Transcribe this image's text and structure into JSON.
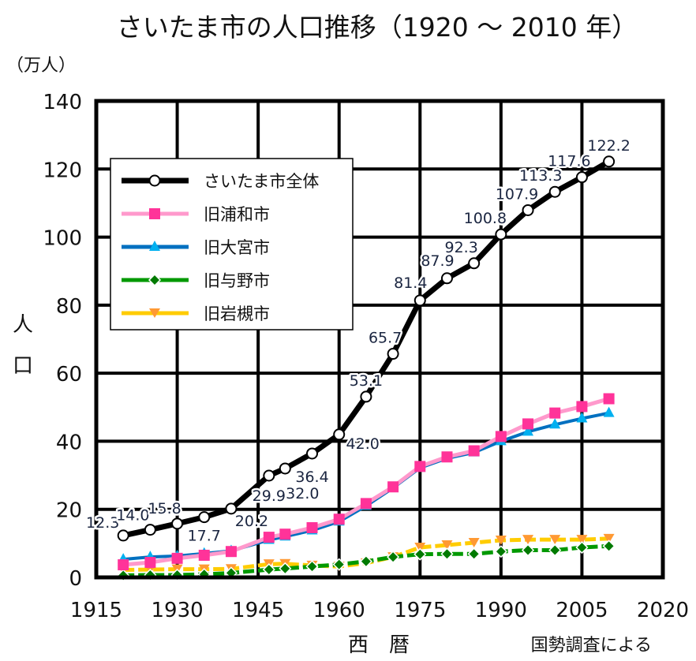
{
  "chart_data": {
    "type": "line",
    "title": "さいたま市の人口推移（1920 ～ 2010 年）",
    "unit_label": "（万人）",
    "ylabel": "人口",
    "xlabel": "西　暦",
    "source_note": "国勢調査による",
    "xlim": [
      1915,
      2020
    ],
    "ylim": [
      0,
      140
    ],
    "x_ticks": [
      1915,
      1930,
      1945,
      1960,
      1975,
      1990,
      2005,
      2020
    ],
    "y_ticks": [
      0,
      20,
      40,
      60,
      80,
      100,
      120,
      140
    ],
    "grid": true,
    "legend_position": "top-left",
    "x": [
      1920,
      1925,
      1930,
      1935,
      1940,
      1947,
      1950,
      1955,
      1960,
      1965,
      1970,
      1975,
      1980,
      1985,
      1990,
      1995,
      2000,
      2005,
      2010
    ],
    "series": [
      {
        "name": "さいたま市全体",
        "color": "#000000",
        "marker": "circle-open",
        "values": [
          12.3,
          14.0,
          15.8,
          17.7,
          20.2,
          29.9,
          32.0,
          36.4,
          42.0,
          53.1,
          65.7,
          81.4,
          87.9,
          92.3,
          100.8,
          107.9,
          113.3,
          117.6,
          122.2
        ],
        "labels": [
          "12.3",
          "14.0",
          "15.8",
          "17.7",
          "20.2",
          "29.9",
          "32.0",
          "36.4",
          "42.0",
          "53.1",
          "65.7",
          "81.4",
          "87.9",
          "92.3",
          "100.8",
          "107.9",
          "113.3",
          "117.6",
          "122.2"
        ]
      },
      {
        "name": "旧浦和市",
        "color": "#ff99cc",
        "marker_color": "#ff3399",
        "marker": "square",
        "values": [
          3.7,
          4.4,
          5.6,
          6.5,
          7.6,
          11.8,
          12.7,
          14.6,
          17.1,
          21.7,
          26.6,
          32.6,
          35.4,
          37.2,
          41.4,
          45.1,
          48.3,
          50.2,
          52.5
        ]
      },
      {
        "name": "旧大宮市",
        "color": "#0070c0",
        "marker_color": "#00b0f0",
        "marker": "triangle-up",
        "values": [
          5.3,
          6.0,
          6.3,
          7.0,
          7.8,
          11.0,
          12.0,
          13.8,
          16.4,
          21.0,
          26.3,
          32.2,
          35.0,
          36.7,
          40.0,
          42.8,
          44.9,
          46.7,
          48.3
        ]
      },
      {
        "name": "旧与野市",
        "color": "#009900",
        "marker_color": "#007a00",
        "marker": "diamond",
        "values": [
          0.6,
          0.7,
          0.7,
          0.9,
          1.3,
          2.3,
          2.6,
          3.2,
          3.8,
          4.7,
          6.0,
          6.8,
          6.9,
          6.9,
          7.6,
          8.0,
          8.0,
          8.8,
          9.2
        ]
      },
      {
        "name": "旧岩槻市",
        "color": "#ffcc00",
        "marker_color": "#ff9933",
        "marker": "triangle-down",
        "values": [
          2.2,
          2.3,
          2.4,
          2.4,
          2.5,
          3.9,
          4.0,
          3.5,
          3.2,
          4.2,
          6.0,
          8.8,
          9.5,
          10.2,
          10.9,
          11.1,
          11.1,
          11.1,
          11.4
        ]
      }
    ]
  }
}
